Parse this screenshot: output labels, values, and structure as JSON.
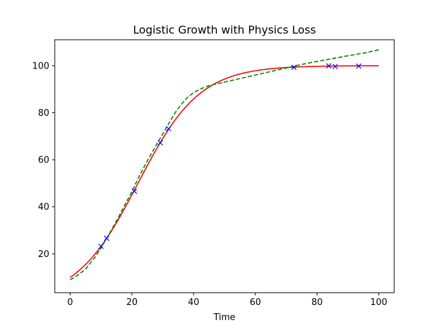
{
  "chart_data": {
    "type": "line",
    "title": "Logistic Growth with Physics Loss",
    "xlabel": "Time",
    "ylabel": "",
    "xlim": [
      -5,
      105
    ],
    "ylim": [
      3.5,
      111
    ],
    "xticks": [
      0,
      20,
      40,
      60,
      80,
      100
    ],
    "yticks": [
      20,
      40,
      60,
      80,
      100
    ],
    "grid": false,
    "legend": "none",
    "colors": {
      "true_curve": "#ff0000",
      "model_curve": "#008000",
      "observations": "#0000ff"
    },
    "series": [
      {
        "style": "solid",
        "color": "#ff0000",
        "kind": "logistic",
        "params": {
          "K": 100,
          "P0": 10,
          "r": 0.1
        }
      },
      {
        "style": "dashed",
        "color": "#008000",
        "x": [
          0,
          2,
          5,
          8,
          10,
          12,
          15,
          18,
          20,
          22,
          25,
          28,
          30,
          32,
          34,
          36,
          38,
          40,
          42,
          45,
          50,
          55,
          60,
          65,
          70,
          75,
          80,
          85,
          90,
          95,
          100
        ],
        "y": [
          9,
          10.5,
          13.5,
          18.5,
          22.5,
          27,
          34,
          41.5,
          46.5,
          52,
          59.5,
          66.5,
          71,
          75.5,
          80,
          83.5,
          86.5,
          88.5,
          90,
          91.5,
          93,
          94.5,
          96,
          97.5,
          99,
          100.5,
          101.8,
          103,
          104.2,
          105.3,
          106.7
        ]
      },
      {
        "style": "markers",
        "marker": "x",
        "color": "#0000ff",
        "x": [
          10,
          11.8,
          20.8,
          29.2,
          31.9,
          72.5,
          83.8,
          85.9,
          93.5
        ],
        "y": [
          23.2,
          26.6,
          46.6,
          67.2,
          73.2,
          99.3,
          99.9,
          99.6,
          99.8
        ]
      }
    ]
  }
}
